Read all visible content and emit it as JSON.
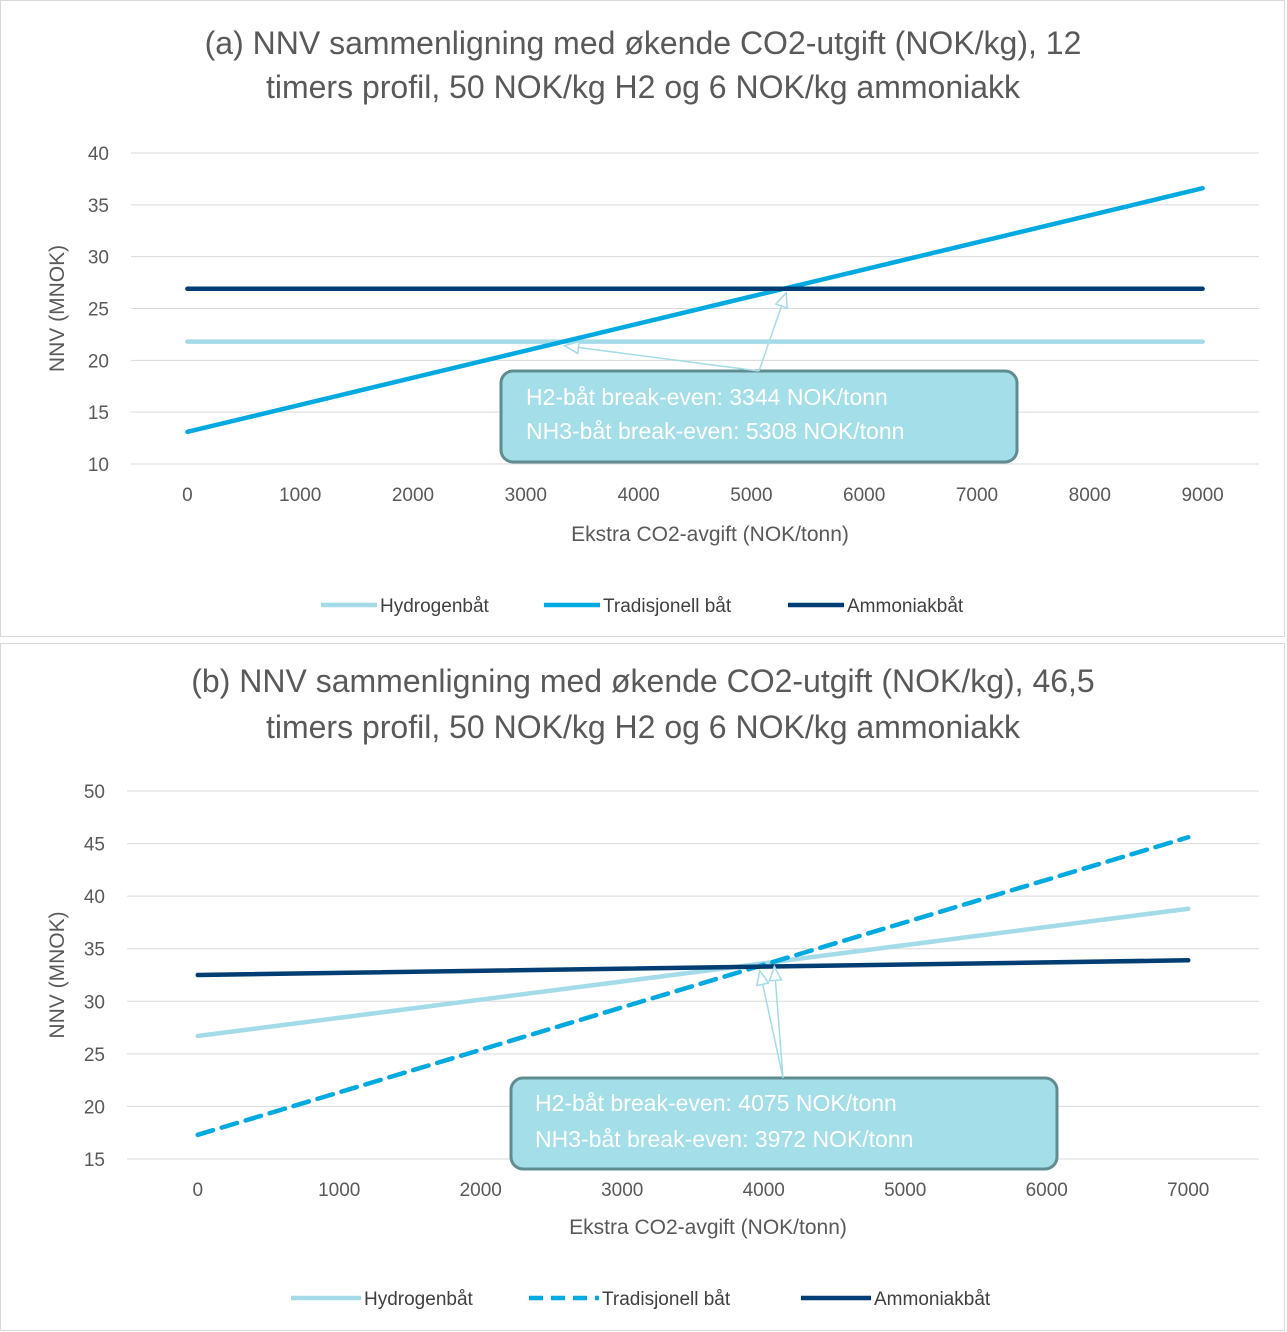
{
  "chart_data": [
    {
      "type": "line",
      "title_lines": [
        "(a) NNV sammenligning med økende CO2-utgift (NOK/kg), 12",
        "timers profil, 50 NOK/kg H2 og 6 NOK/kg ammoniakk"
      ],
      "xlabel": "Ekstra CO2-avgift (NOK/tonn)",
      "ylabel": "NNV (MNOK)",
      "xlim": [
        0,
        9000
      ],
      "ylim": [
        10,
        40
      ],
      "x_ticks": [
        "0",
        "1000",
        "2000",
        "3000",
        "4000",
        "5000",
        "6000",
        "7000",
        "8000",
        "9000"
      ],
      "y_ticks": [
        "10",
        "15",
        "20",
        "25",
        "30",
        "35",
        "40"
      ],
      "grid": true,
      "legend_position": "bottom",
      "series": [
        {
          "name": "Hydrogenbåt",
          "x": [
            0,
            9000
          ],
          "values": [
            21.8,
            21.8
          ],
          "color": "#a4dbe8",
          "dashed": false
        },
        {
          "name": "Tradisjonell båt",
          "x": [
            0,
            9000
          ],
          "values": [
            13.1,
            36.6
          ],
          "color": "#00a9e0",
          "dashed": false
        },
        {
          "name": "Ammoniakbåt",
          "x": [
            0,
            9000
          ],
          "values": [
            26.9,
            26.9
          ],
          "color": "#003d73",
          "dashed": false
        }
      ],
      "annotation": {
        "lines": [
          "H2-båt break-even: 3344 NOK/tonn",
          "NH3-båt break-even: 5308 NOK/tonn"
        ],
        "targets": [
          {
            "x": 3344,
            "y": 21.8
          },
          {
            "x": 5308,
            "y": 26.9
          }
        ]
      }
    },
    {
      "type": "line",
      "title_lines": [
        "(b) NNV sammenligning med økende CO2-utgift (NOK/kg), 46,5",
        "timers profil, 50 NOK/kg H2 og 6 NOK/kg ammoniakk"
      ],
      "xlabel": "Ekstra CO2-avgift (NOK/tonn)",
      "ylabel": "NNV (MNOK)",
      "xlim": [
        0,
        7000
      ],
      "ylim": [
        15,
        50
      ],
      "x_ticks": [
        "0",
        "1000",
        "2000",
        "3000",
        "4000",
        "5000",
        "6000",
        "7000"
      ],
      "y_ticks": [
        "15",
        "20",
        "25",
        "30",
        "35",
        "40",
        "45",
        "50"
      ],
      "grid": true,
      "legend_position": "bottom",
      "series": [
        {
          "name": "Hydrogenbåt",
          "x": [
            0,
            7000
          ],
          "values": [
            26.7,
            38.8
          ],
          "color": "#a4dbe8",
          "dashed": false
        },
        {
          "name": "Tradisjonell båt",
          "x": [
            0,
            7000
          ],
          "values": [
            17.3,
            45.6
          ],
          "color": "#00a9e0",
          "dashed": true
        },
        {
          "name": "Ammoniakbåt",
          "x": [
            0,
            7000
          ],
          "values": [
            32.5,
            33.9
          ],
          "color": "#003d73",
          "dashed": false
        }
      ],
      "annotation": {
        "lines": [
          "H2-båt break-even: 4075 NOK/tonn",
          "NH3-båt break-even: 3972 NOK/tonn"
        ],
        "targets": [
          {
            "x": 4075,
            "y": 33.7
          },
          {
            "x": 3972,
            "y": 33.3
          }
        ]
      }
    }
  ]
}
